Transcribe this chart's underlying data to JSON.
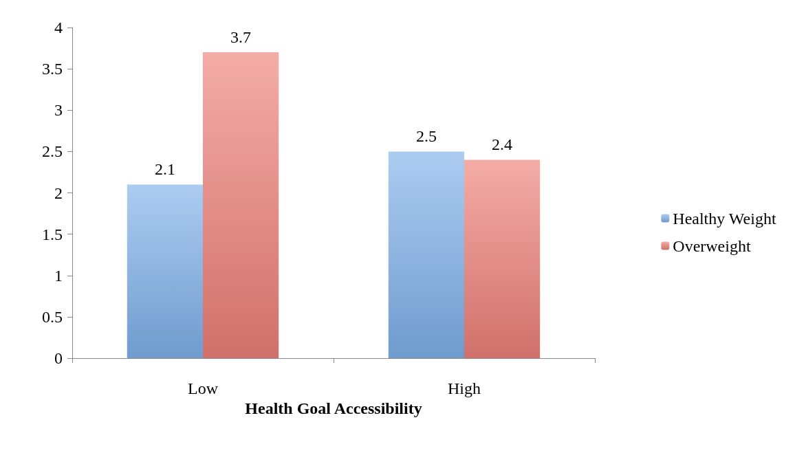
{
  "chart_data": {
    "type": "bar",
    "xlabel": "Health Goal Accessibility",
    "categories": [
      "Low",
      "High"
    ],
    "series": [
      {
        "name": "Healthy Weight",
        "color": "#7fb0ea",
        "values": [
          2.1,
          2.5
        ]
      },
      {
        "name": "Overweight",
        "color": "#ee7f78",
        "values": [
          3.7,
          2.4
        ]
      }
    ],
    "ylim": [
      0,
      4
    ],
    "yticks": [
      0,
      0.5,
      1,
      1.5,
      2,
      2.5,
      3,
      3.5,
      4
    ],
    "grid": false,
    "legend": "right",
    "data_labels": true
  }
}
